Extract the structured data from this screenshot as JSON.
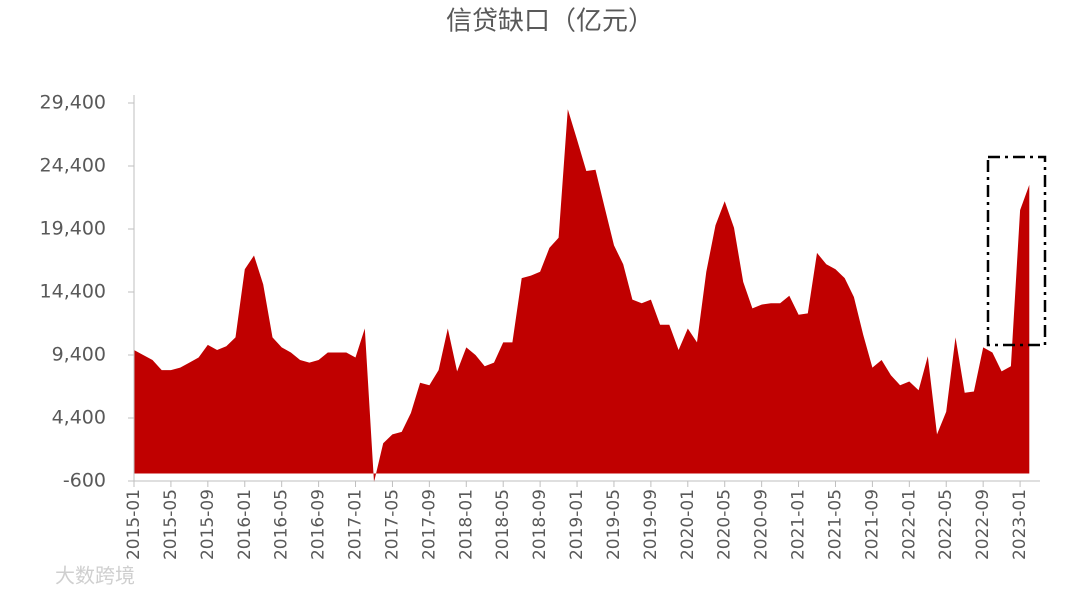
{
  "chart_data": {
    "type": "area",
    "title": "信贷缺口（亿元）",
    "watermark": "大数跨境",
    "color": "#c00000",
    "categories": [
      "2015-01",
      null,
      null,
      null,
      "2015-05",
      null,
      null,
      null,
      "2015-09",
      null,
      null,
      null,
      "2016-01",
      null,
      null,
      null,
      "2016-05",
      null,
      null,
      null,
      "2016-09",
      null,
      null,
      null,
      "2017-01",
      null,
      null,
      null,
      "2017-05",
      null,
      null,
      null,
      "2017-09",
      null,
      null,
      null,
      "2018-01",
      null,
      null,
      null,
      "2018-05",
      null,
      null,
      null,
      "2018-09",
      null,
      null,
      null,
      "2019-01",
      null,
      null,
      null,
      "2019-05",
      null,
      null,
      null,
      "2019-09",
      null,
      null,
      null,
      "2020-01",
      null,
      null,
      null,
      "2020-05",
      null,
      null,
      null,
      "2020-09",
      null,
      null,
      null,
      "2021-01",
      null,
      null,
      null,
      "2021-05",
      null,
      null,
      null,
      "2021-09",
      null,
      null,
      null,
      "2022-01",
      null,
      null,
      null,
      "2022-05",
      null,
      null,
      null,
      "2022-09",
      null,
      null,
      null,
      "2023-01",
      null
    ],
    "values": [
      9800,
      9400,
      9000,
      8200,
      8200,
      8400,
      8800,
      9200,
      10200,
      9800,
      10100,
      10800,
      16200,
      17300,
      15000,
      10800,
      10000,
      9600,
      9000,
      8800,
      9000,
      9600,
      9600,
      9600,
      9200,
      11500,
      -700,
      2400,
      3100,
      3300,
      4800,
      7200,
      7000,
      8200,
      11500,
      8100,
      10000,
      9400,
      8500,
      8800,
      10400,
      10400,
      15500,
      15700,
      16000,
      17900,
      18700,
      28900,
      26500,
      24000,
      24100,
      21100,
      18100,
      16600,
      13800,
      13500,
      13800,
      11800,
      11800,
      9800,
      11500,
      10400,
      16000,
      19700,
      21600,
      19500,
      15200,
      13100,
      13400,
      13500,
      13500,
      14100,
      12600,
      12700,
      17500,
      16600,
      16200,
      15500,
      14000,
      11000,
      8400,
      9000,
      7800,
      7000,
      7300,
      6600,
      9300,
      3100,
      4900,
      10800,
      6400,
      6500,
      10000,
      9600,
      8100,
      8500,
      20900,
      22900
    ],
    "ylim": [
      -600,
      29400
    ],
    "yticks": [
      {
        "value": -600,
        "label": "-600"
      },
      {
        "value": 4400,
        "label": "4,400"
      },
      {
        "value": 9400,
        "label": "9,400"
      },
      {
        "value": 14400,
        "label": "14,400"
      },
      {
        "value": 19400,
        "label": "19,400"
      },
      {
        "value": 24400,
        "label": "24,400"
      },
      {
        "value": 29400,
        "label": "29,400"
      }
    ],
    "grid": false
  }
}
